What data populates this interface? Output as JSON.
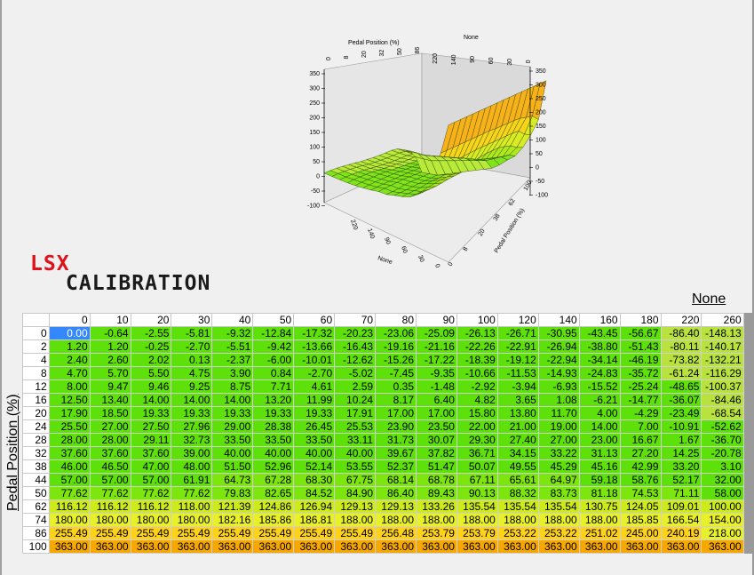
{
  "logo": {
    "line1": "LSX",
    "line2": "CALIBRATION"
  },
  "column_axis_title": "None",
  "row_axis_title": "Pedal Position (%)",
  "surface_plot": {
    "label_pedal_top": "Pedal Position (%)",
    "label_none_top": "None",
    "label_pedal_right": "Pedal Position (%)",
    "label_none_bottom": "None",
    "z_ticks": [
      "350",
      "300",
      "250",
      "200",
      "150",
      "100",
      "50",
      "0",
      "-50",
      "-100"
    ],
    "z_ticks_right": [
      "350",
      "300",
      "250",
      "200",
      "150",
      "100",
      "50",
      "0",
      "-50",
      "-100"
    ],
    "pedal_ticks_top": [
      "0",
      "8",
      "20",
      "32",
      "50",
      "86"
    ],
    "none_ticks_top": [
      "220",
      "140",
      "90",
      "60",
      "30",
      "0"
    ],
    "pedal_ticks_right": [
      "0",
      "8",
      "20",
      "38",
      "62",
      "100"
    ],
    "none_ticks_bottom": [
      "220",
      "140",
      "90",
      "60",
      "30",
      "0"
    ]
  },
  "table": {
    "columns": [
      "0",
      "10",
      "20",
      "30",
      "40",
      "50",
      "60",
      "70",
      "80",
      "90",
      "100",
      "120",
      "140",
      "160",
      "180",
      "220",
      "260"
    ],
    "rows": [
      {
        "label": "0",
        "values": [
          "0.00",
          "-0.64",
          "-2.55",
          "-5.81",
          "-9.32",
          "-12.84",
          "-17.32",
          "-20.23",
          "-23.06",
          "-25.09",
          "-26.13",
          "-26.71",
          "-30.95",
          "-43.45",
          "-56.67",
          "-86.40",
          "-148.13"
        ]
      },
      {
        "label": "2",
        "values": [
          "1.20",
          "1.20",
          "-0.25",
          "-2.70",
          "-5.51",
          "-9.42",
          "-13.66",
          "-16.43",
          "-19.16",
          "-21.16",
          "-22.26",
          "-22.91",
          "-26.94",
          "-38.80",
          "-51.43",
          "-80.11",
          "-140.17"
        ]
      },
      {
        "label": "4",
        "values": [
          "2.40",
          "2.60",
          "2.02",
          "0.13",
          "-2.37",
          "-6.00",
          "-10.01",
          "-12.62",
          "-15.26",
          "-17.22",
          "-18.39",
          "-19.12",
          "-22.94",
          "-34.14",
          "-46.19",
          "-73.82",
          "-132.21"
        ]
      },
      {
        "label": "8",
        "values": [
          "4.70",
          "5.70",
          "5.50",
          "4.75",
          "3.90",
          "0.84",
          "-2.70",
          "-5.02",
          "-7.45",
          "-9.35",
          "-10.66",
          "-11.53",
          "-14.93",
          "-24.83",
          "-35.72",
          "-61.24",
          "-116.29"
        ]
      },
      {
        "label": "12",
        "values": [
          "8.00",
          "9.47",
          "9.46",
          "9.25",
          "8.75",
          "7.71",
          "4.61",
          "2.59",
          "0.35",
          "-1.48",
          "-2.92",
          "-3.94",
          "-6.93",
          "-15.52",
          "-25.24",
          "-48.65",
          "-100.37"
        ]
      },
      {
        "label": "16",
        "values": [
          "12.50",
          "13.40",
          "14.00",
          "14.00",
          "14.00",
          "13.20",
          "11.99",
          "10.24",
          "8.17",
          "6.40",
          "4.82",
          "3.65",
          "1.08",
          "-6.21",
          "-14.77",
          "-36.07",
          "-84.46"
        ]
      },
      {
        "label": "20",
        "values": [
          "17.90",
          "18.50",
          "19.33",
          "19.33",
          "19.33",
          "19.33",
          "19.33",
          "17.91",
          "17.00",
          "17.00",
          "15.80",
          "13.80",
          "11.70",
          "4.00",
          "-4.29",
          "-23.49",
          "-68.54"
        ]
      },
      {
        "label": "24",
        "values": [
          "25.50",
          "27.00",
          "27.50",
          "27.96",
          "29.00",
          "28.38",
          "26.45",
          "25.53",
          "23.90",
          "23.50",
          "22.00",
          "21.00",
          "19.00",
          "14.00",
          "7.00",
          "-10.91",
          "-52.62"
        ]
      },
      {
        "label": "28",
        "values": [
          "28.00",
          "28.00",
          "29.11",
          "32.73",
          "33.50",
          "33.50",
          "33.50",
          "33.11",
          "31.73",
          "30.07",
          "29.30",
          "27.40",
          "27.00",
          "23.00",
          "16.67",
          "1.67",
          "-36.70"
        ]
      },
      {
        "label": "32",
        "values": [
          "37.60",
          "37.60",
          "37.60",
          "39.00",
          "40.00",
          "40.00",
          "40.00",
          "40.00",
          "39.67",
          "37.82",
          "36.71",
          "34.15",
          "33.22",
          "31.13",
          "27.20",
          "14.25",
          "-20.78"
        ]
      },
      {
        "label": "38",
        "values": [
          "46.00",
          "46.50",
          "47.00",
          "48.00",
          "51.50",
          "52.96",
          "52.14",
          "53.55",
          "52.37",
          "51.47",
          "50.07",
          "49.55",
          "45.29",
          "45.16",
          "42.99",
          "33.20",
          "3.10"
        ]
      },
      {
        "label": "44",
        "values": [
          "57.00",
          "57.00",
          "57.00",
          "61.91",
          "64.73",
          "67.28",
          "68.30",
          "67.75",
          "68.14",
          "68.78",
          "67.11",
          "65.61",
          "64.97",
          "59.18",
          "58.76",
          "52.17",
          "32.00"
        ]
      },
      {
        "label": "50",
        "values": [
          "77.62",
          "77.62",
          "77.62",
          "77.62",
          "79.83",
          "82.65",
          "84.52",
          "84.90",
          "86.40",
          "89.43",
          "90.13",
          "88.32",
          "83.73",
          "81.18",
          "74.53",
          "71.11",
          "58.00"
        ]
      },
      {
        "label": "62",
        "values": [
          "116.12",
          "116.12",
          "116.12",
          "118.00",
          "121.39",
          "124.86",
          "126.94",
          "129.13",
          "129.13",
          "133.26",
          "135.54",
          "135.54",
          "135.54",
          "130.75",
          "124.05",
          "109.01",
          "100.00"
        ]
      },
      {
        "label": "74",
        "values": [
          "180.00",
          "180.00",
          "180.00",
          "180.00",
          "182.16",
          "185.86",
          "186.81",
          "188.00",
          "188.00",
          "188.00",
          "188.00",
          "188.00",
          "188.00",
          "188.00",
          "185.85",
          "166.54",
          "154.00"
        ]
      },
      {
        "label": "86",
        "values": [
          "255.49",
          "255.49",
          "255.49",
          "255.49",
          "255.49",
          "255.49",
          "255.49",
          "255.49",
          "256.48",
          "253.79",
          "253.79",
          "253.22",
          "253.22",
          "251.02",
          "245.00",
          "240.19",
          "218.00"
        ]
      },
      {
        "label": "100",
        "values": [
          "363.00",
          "363.00",
          "363.00",
          "363.00",
          "363.00",
          "363.00",
          "363.00",
          "363.00",
          "363.00",
          "363.00",
          "363.00",
          "363.00",
          "363.00",
          "363.00",
          "363.00",
          "363.00",
          "363.00"
        ]
      }
    ],
    "selected_cell": [
      0,
      0
    ]
  }
}
